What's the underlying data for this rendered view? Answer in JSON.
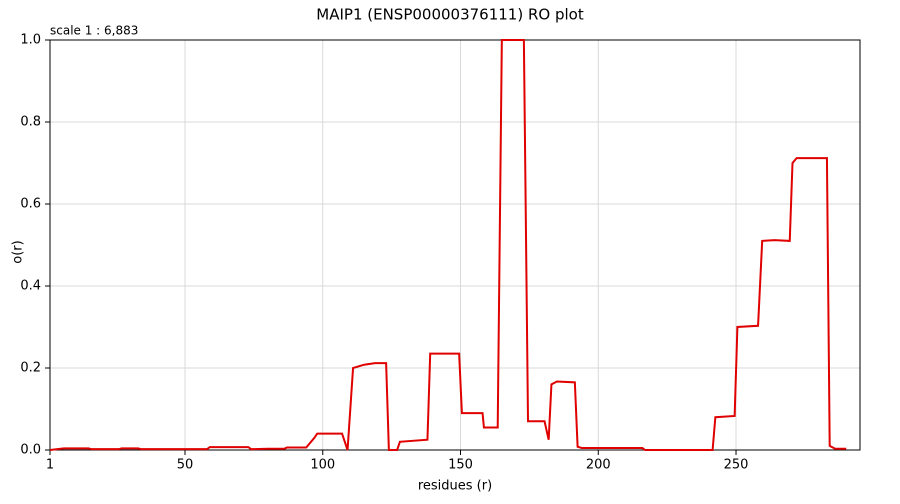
{
  "chart_data": {
    "type": "line",
    "title": "MAIP1 (ENSP00000376111) RO plot",
    "subtitle": "scale 1 : 6,883",
    "x_label": "residues (r)",
    "y_label": "o(r)",
    "x": [
      1,
      6,
      15,
      16,
      26,
      27,
      33,
      34,
      58,
      59,
      73,
      74,
      80,
      86,
      87,
      94,
      97,
      98,
      107,
      109,
      111,
      115,
      119,
      123,
      124,
      127,
      128,
      138,
      139,
      149.5,
      150.5,
      158,
      158.5,
      163.5,
      165,
      173,
      174.5,
      180.5,
      182,
      183,
      185,
      191.5,
      192.5,
      194,
      216,
      217,
      241.5,
      242.5,
      249.5,
      250.5,
      258,
      259.5,
      264,
      269.5,
      270.5,
      272,
      283,
      284,
      286,
      290
    ],
    "series": [
      {
        "name": "o(r)",
        "color": "#e00000",
        "values": [
          0,
          0.004,
          0.004,
          0.002,
          0.002,
          0.004,
          0.004,
          0.002,
          0.002,
          0.007,
          0.007,
          0.002,
          0.003,
          0.003,
          0.006,
          0.006,
          0.03,
          0.04,
          0.04,
          0,
          0.2,
          0.208,
          0.212,
          0.212,
          0,
          0,
          0.02,
          0.025,
          0.235,
          0.235,
          0.09,
          0.09,
          0.055,
          0.055,
          1.0,
          1.0,
          0.07,
          0.07,
          0.025,
          0.16,
          0.167,
          0.165,
          0.008,
          0.005,
          0.005,
          0,
          0,
          0.08,
          0.083,
          0.3,
          0.303,
          0.51,
          0.512,
          0.51,
          0.7,
          0.712,
          0.712,
          0.01,
          0.003,
          0.003
        ]
      }
    ],
    "xlim": [
      1,
      295
    ],
    "ylim": [
      0,
      1.0
    ],
    "xticks": [
      1,
      50,
      100,
      150,
      200,
      250
    ],
    "yticks": [
      {
        "value": 0,
        "label": "0.0"
      },
      {
        "value": 0.2,
        "label": "0.2"
      },
      {
        "value": 0.4,
        "label": "0.4"
      },
      {
        "value": 0.6,
        "label": "0.6"
      },
      {
        "value": 0.8,
        "label": "0.8"
      },
      {
        "value": 1.0,
        "label": "1.0"
      }
    ],
    "grid": true
  }
}
